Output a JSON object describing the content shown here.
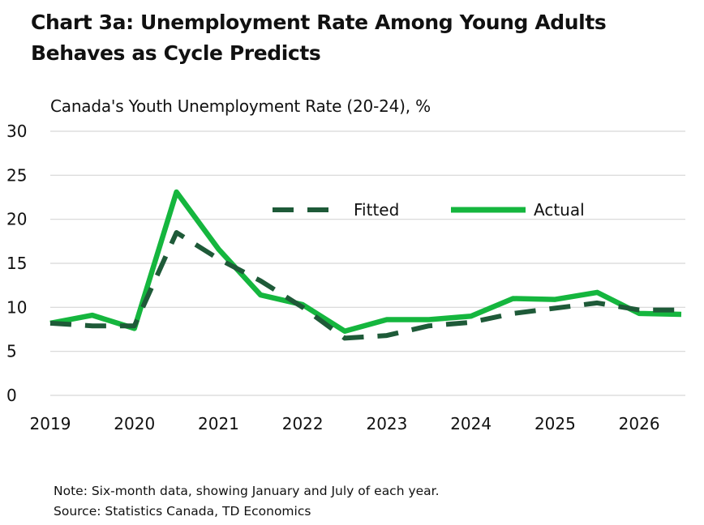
{
  "title": "Chart 3a: Unemployment Rate Among Young Adults Behaves as Cycle Predicts",
  "subtitle": "Canada's Youth Unemployment Rate (20-24), %",
  "notes": {
    "note": "Note: Six-month data, showing January and July of each year.",
    "source": "Source: Statistics Canada, TD Economics"
  },
  "chart_data": {
    "type": "line",
    "title": "Chart 3a: Unemployment Rate Among Young Adults Behaves as Cycle Predicts",
    "ylabel": "Canada's Youth Unemployment Rate (20-24), %",
    "xlabel": "",
    "ylim": [
      0,
      30
    ],
    "yticks": [
      "0",
      "5",
      "10",
      "15",
      "20",
      "25",
      "30"
    ],
    "x": [
      "2019-01",
      "2019-07",
      "2020-01",
      "2020-07",
      "2021-01",
      "2021-07",
      "2022-01",
      "2022-07",
      "2023-01",
      "2023-07",
      "2024-01",
      "2024-07",
      "2025-01",
      "2025-07",
      "2026-01",
      "2026-07"
    ],
    "xticks": [
      "2019",
      "2020",
      "2021",
      "2022",
      "2023",
      "2024",
      "2025",
      "2026"
    ],
    "grid": true,
    "legend": "top-center",
    "series": [
      {
        "name": "Fitted",
        "color": "#1e5a38",
        "style": "dashed",
        "values": [
          8.2,
          7.9,
          7.9,
          18.5,
          15.5,
          13.0,
          10.0,
          6.5,
          6.8,
          7.9,
          8.3,
          9.3,
          9.9,
          10.5,
          9.7,
          9.7
        ]
      },
      {
        "name": "Actual",
        "color": "#15b63e",
        "style": "solid",
        "values": [
          8.2,
          9.1,
          7.6,
          23.1,
          16.6,
          11.4,
          10.3,
          7.3,
          8.6,
          8.6,
          9.0,
          11.0,
          10.9,
          11.7,
          9.3,
          9.2
        ]
      }
    ]
  }
}
